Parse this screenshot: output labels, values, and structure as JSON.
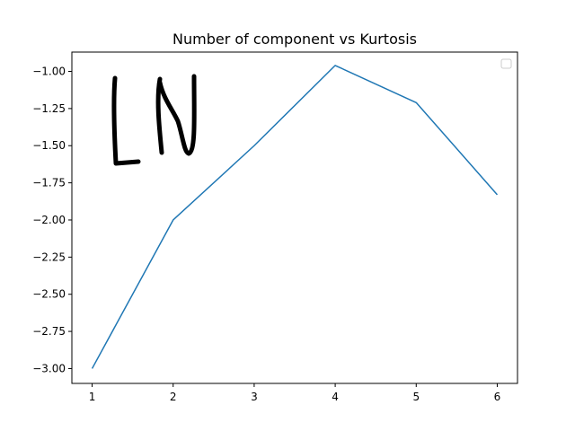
{
  "chart_data": {
    "type": "line",
    "title": "Number of component vs Kurtosis",
    "xlabel": "",
    "ylabel": "",
    "x": [
      1,
      2,
      3,
      4,
      5,
      6
    ],
    "series": [
      {
        "values": [
          -3.0,
          -2.0,
          -1.5,
          -0.96,
          -1.21,
          -1.83
        ],
        "color": "#1f77b4"
      }
    ],
    "xticks": [
      1,
      2,
      3,
      4,
      5,
      6
    ],
    "yticks": [
      -1.0,
      -1.25,
      -1.5,
      -1.75,
      -2.0,
      -2.25,
      -2.5,
      -2.75,
      -3.0
    ],
    "ytick_labels": [
      "−1.00",
      "−1.25",
      "−1.50",
      "−1.75",
      "−2.00",
      "−2.25",
      "−2.50",
      "−2.75",
      "−3.00"
    ],
    "xlim": [
      0.75,
      6.25
    ],
    "ylim": [
      -3.1,
      -0.87
    ],
    "grid": false,
    "legend": {
      "placement": "top-right",
      "entries": []
    },
    "handwriting_icon": "handwritten-ln-scribble"
  }
}
